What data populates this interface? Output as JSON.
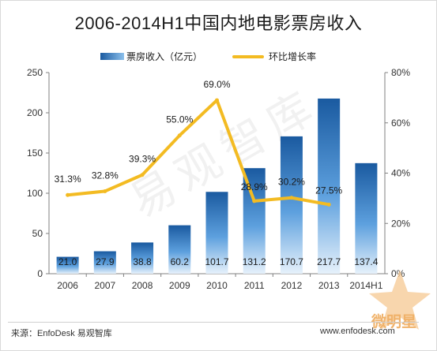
{
  "title": "2006-2014H1中国内地电影票房收入",
  "watermark": "易观智库",
  "badge_label": "微明星",
  "source": "来源：EnfoDesk 易观智库",
  "site": "www.enfodesk.com",
  "colors": {
    "bar_top": "#1a5aa0",
    "bar_bottom": "#e6f1fb",
    "line": "#f3bb22",
    "axis": "#808080",
    "grid": "#e4e4e4"
  },
  "chart_data": {
    "type": "bar",
    "categories": [
      "2006",
      "2007",
      "2008",
      "2009",
      "2010",
      "2011",
      "2012",
      "2013",
      "2014H1"
    ],
    "series": [
      {
        "name": "票房收入（亿元）",
        "type": "bar",
        "axis": "left",
        "values": [
          21.0,
          27.9,
          38.8,
          60.2,
          101.7,
          131.2,
          170.7,
          217.7,
          137.4
        ],
        "labels": [
          "21.0",
          "27.9",
          "38.8",
          "60.2",
          "101.7",
          "131.2",
          "170.7",
          "217.7",
          "137.4"
        ]
      },
      {
        "name": "环比增长率",
        "type": "line",
        "axis": "right",
        "values": [
          31.3,
          32.8,
          39.3,
          55.0,
          69.0,
          28.9,
          30.2,
          27.5,
          null
        ],
        "labels": [
          "31.3%",
          "32.8%",
          "39.3%",
          "55.0%",
          "69.0%",
          "28.9%",
          "30.2%",
          "27.5%",
          ""
        ]
      }
    ],
    "y_left": {
      "min": 0,
      "max": 250,
      "ticks": [
        0,
        50,
        100,
        150,
        200,
        250
      ]
    },
    "y_right": {
      "min": 0,
      "max": 80,
      "ticks": [
        "0%",
        "20%",
        "40%",
        "60%",
        "80%"
      ]
    },
    "legend_position": "top",
    "grid": false
  }
}
